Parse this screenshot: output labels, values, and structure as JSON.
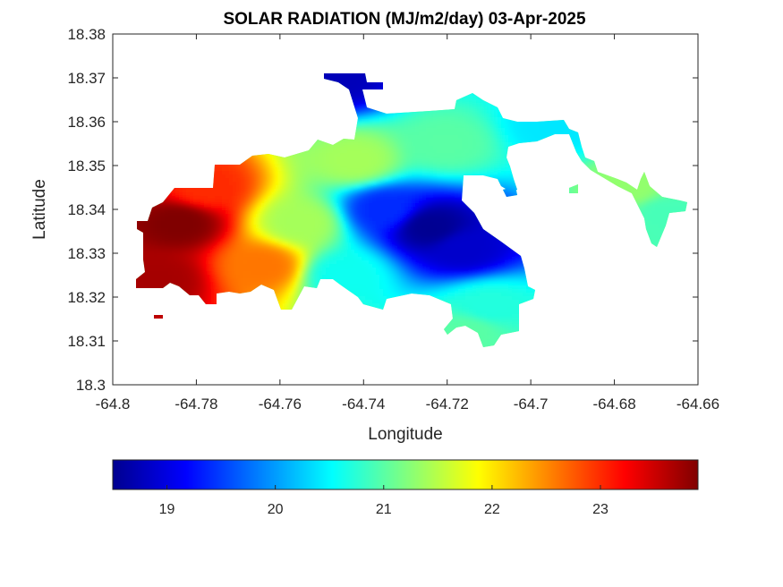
{
  "chart_data": {
    "type": "heatmap",
    "title": "SOLAR RADIATION (MJ/m2/day) 03-Apr-2025",
    "xlabel": "Longitude",
    "ylabel": "Latitude",
    "xlim": [
      -64.8,
      -64.66
    ],
    "ylim": [
      18.3,
      18.38
    ],
    "x_ticks": [
      "-64.8",
      "-64.78",
      "-64.76",
      "-64.74",
      "-64.72",
      "-64.7",
      "-64.68",
      "-64.66"
    ],
    "y_ticks": [
      "18.3",
      "18.31",
      "18.32",
      "18.33",
      "18.34",
      "18.35",
      "18.36",
      "18.37",
      "18.38"
    ],
    "colormap": "jet",
    "colorbar": {
      "orientation": "horizontal",
      "range": [
        18.5,
        23.9
      ],
      "ticks": [
        "19",
        "20",
        "21",
        "22",
        "23"
      ]
    },
    "field_hotspots": [
      {
        "lon": -64.784,
        "lat": 18.337,
        "value": 23.9
      },
      {
        "lon": -64.789,
        "lat": 18.324,
        "value": 23.7
      },
      {
        "lon": -64.778,
        "lat": 18.345,
        "value": 23.0
      },
      {
        "lon": -64.764,
        "lat": 18.327,
        "value": 22.6
      },
      {
        "lon": -64.724,
        "lat": 18.336,
        "value": 18.6
      },
      {
        "lon": -64.716,
        "lat": 18.331,
        "value": 18.9
      },
      {
        "lon": -64.735,
        "lat": 18.34,
        "value": 19.4
      },
      {
        "lon": -64.747,
        "lat": 18.37,
        "value": 18.8
      },
      {
        "lon": -64.742,
        "lat": 18.351,
        "value": 21.4
      },
      {
        "lon": -64.755,
        "lat": 18.337,
        "value": 21.4
      },
      {
        "lon": -64.745,
        "lat": 18.325,
        "value": 20.6
      },
      {
        "lon": -64.72,
        "lat": 18.355,
        "value": 21.0
      },
      {
        "lon": -64.71,
        "lat": 18.318,
        "value": 20.7
      },
      {
        "lon": -64.715,
        "lat": 18.312,
        "value": 21.0
      },
      {
        "lon": -64.695,
        "lat": 18.359,
        "value": 20.4
      },
      {
        "lon": -64.668,
        "lat": 18.339,
        "value": 20.9
      },
      {
        "lon": -64.676,
        "lat": 18.345,
        "value": 21.3
      }
    ]
  }
}
